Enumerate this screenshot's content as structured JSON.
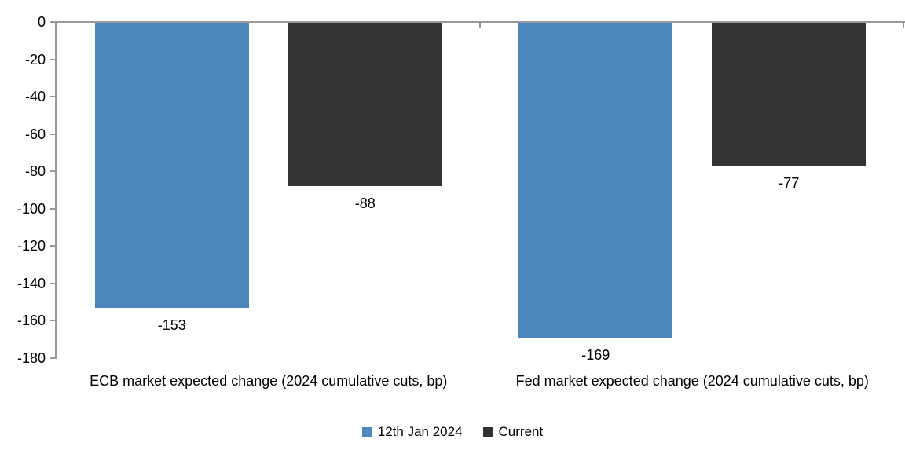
{
  "chart_data": {
    "type": "bar",
    "categories": [
      "ECB market expected change (2024 cumulative cuts, bp)",
      "Fed market expected change (2024 cumulative cuts, bp)"
    ],
    "series": [
      {
        "name": "12th Jan 2024",
        "color": "#4E86BE",
        "values": [
          -153,
          -169
        ]
      },
      {
        "name": "Current",
        "color": "#333333",
        "values": [
          -88,
          -77
        ]
      }
    ],
    "title": "",
    "xlabel": "",
    "ylabel": "",
    "ylim": [
      -180,
      0
    ],
    "yticks": [
      0,
      -20,
      -40,
      -60,
      -80,
      -100,
      -120,
      -140,
      -160,
      -180
    ],
    "grid": false,
    "legend_position": "bottom",
    "data_labels": true,
    "colors": {
      "axis": "#999999",
      "text": "#000000",
      "background": "#FFFFFF"
    }
  }
}
